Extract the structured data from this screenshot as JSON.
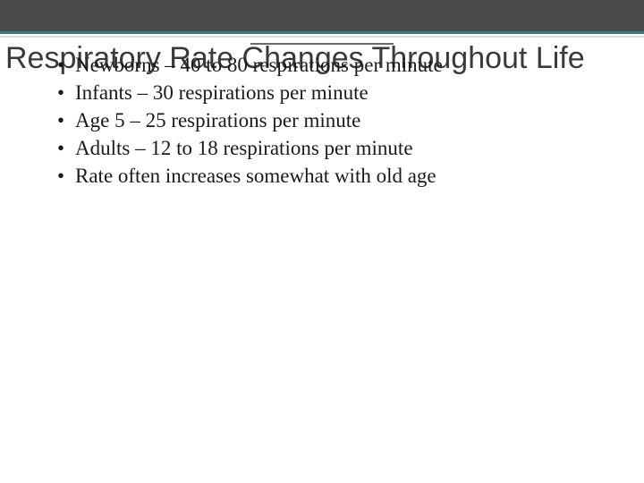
{
  "title": "Respiratory Rate Changes Throughout Life",
  "bullets": [
    "Newborns – 40 to 80 respirations per minute",
    "Infants – 30 respirations per minute",
    "Age 5 – 25 respirations per minute",
    "Adults – 12 to 18 respirations per minute",
    "Rate often increases somewhat with old age"
  ],
  "colors": {
    "top_band": "#4a4a4a",
    "accent_border": "#3a7a7a",
    "light_rule": "#d9d9d9",
    "title_text": "#3a3a3a",
    "body_text": "#1a1a1a",
    "background": "#ffffff"
  },
  "typography": {
    "title_font": "Verdana",
    "title_size_pt": 26,
    "body_font": "Georgia",
    "body_size_pt": 17
  }
}
